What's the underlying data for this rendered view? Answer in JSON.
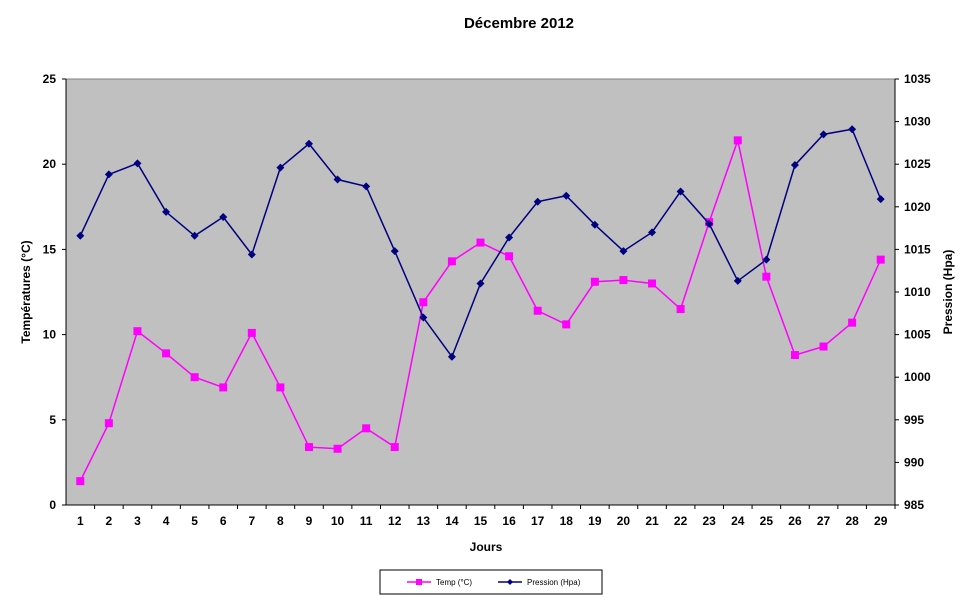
{
  "chart_data": {
    "type": "line",
    "title": "Décembre 2012",
    "xlabel": "Jours",
    "ylabel_left": "Températures (°C)",
    "ylabel_right": "Pression (Hpa)",
    "categories": [
      "1",
      "2",
      "3",
      "4",
      "5",
      "6",
      "7",
      "8",
      "9",
      "10",
      "11",
      "12",
      "13",
      "14",
      "15",
      "16",
      "17",
      "18",
      "19",
      "20",
      "21",
      "22",
      "23",
      "24",
      "25",
      "26",
      "27",
      "28",
      "29"
    ],
    "ylim_left": [
      0,
      25
    ],
    "yticks_left": [
      "0",
      "5",
      "10",
      "15",
      "20",
      "25"
    ],
    "ylim_right": [
      985,
      1035
    ],
    "yticks_right": [
      "985",
      "990",
      "995",
      "1000",
      "1005",
      "1010",
      "1015",
      "1020",
      "1025",
      "1030",
      "1035"
    ],
    "legend_position": "bottom",
    "plot_background": "#c0c0c0",
    "series": [
      {
        "name": "Temp (°C)",
        "axis": "left",
        "color": "#ff00ff",
        "marker": "square",
        "values": [
          1.4,
          4.8,
          10.2,
          8.9,
          7.5,
          6.9,
          10.1,
          6.9,
          3.4,
          3.3,
          4.5,
          3.4,
          11.9,
          14.3,
          15.4,
          14.6,
          11.4,
          10.6,
          13.1,
          13.2,
          13.0,
          11.5,
          16.6,
          21.4,
          13.4,
          8.8,
          9.3,
          10.7,
          14.4
        ]
      },
      {
        "name": "Pression (Hpa)",
        "axis": "right",
        "color": "#000080",
        "marker": "diamond",
        "values": [
          1016.6,
          1023.8,
          1025.1,
          1019.4,
          1016.6,
          1018.8,
          1014.4,
          1024.6,
          1027.4,
          1023.2,
          1022.4,
          1014.8,
          1007.0,
          1002.4,
          1011.0,
          1016.4,
          1020.6,
          1021.3,
          1017.9,
          1014.8,
          1017.0,
          1021.8,
          1018.0,
          1011.3,
          1013.8,
          1024.9,
          1028.5,
          1029.1,
          1020.9
        ]
      }
    ]
  }
}
